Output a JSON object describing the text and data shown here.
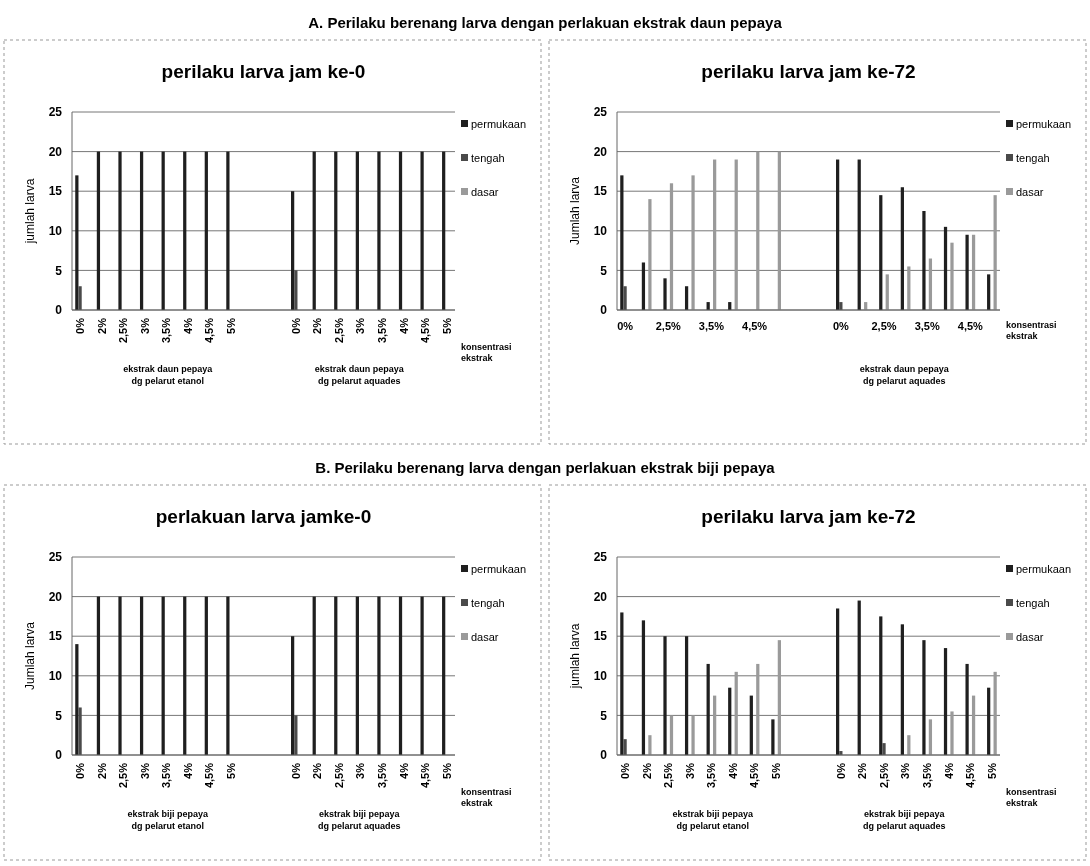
{
  "chart_data": [
    {
      "type": "bar",
      "subtitle": "A.  Perilaku berenang larva dengan perlakuan ekstrak daun pepaya",
      "title": "perilaku larva jam ke-0",
      "ylabel": "jumlah larva",
      "xlabel": "konsentrasi ekstrak",
      "categories": [
        "0%",
        "2%",
        "2,5%",
        "3%",
        "3,5%",
        "4%",
        "4,5%",
        "5%",
        null,
        null,
        "0%",
        "2%",
        "2,5%",
        "3%",
        "3,5%",
        "4%",
        "4,5%",
        "5%"
      ],
      "series": [
        {
          "name": "permukaan",
          "color": "#1f1f1f",
          "values": [
            17,
            20,
            20,
            20,
            20,
            20,
            20,
            20,
            null,
            null,
            15,
            20,
            20,
            20,
            20,
            20,
            20,
            20
          ]
        },
        {
          "name": "tengah",
          "color": "#4a4a4a",
          "values": [
            3,
            0,
            0,
            0,
            0,
            0,
            0,
            0,
            null,
            null,
            5,
            0,
            0,
            0,
            0,
            0,
            0,
            0
          ]
        },
        {
          "name": "dasar",
          "color": "#9a9a9a",
          "values": [
            0,
            0,
            0,
            0,
            0,
            0,
            0,
            0,
            null,
            null,
            0,
            0,
            0,
            0,
            0,
            0,
            0,
            0
          ]
        }
      ],
      "ylim": [
        0,
        25
      ],
      "yticks": [
        0,
        5,
        10,
        15,
        20,
        25
      ],
      "grid": "y",
      "legend": "right",
      "annotations": [
        "ekstrak daun pepaya dg pelarut etanol",
        "ekstrak daun pepaya dg pelarut aquades"
      ]
    },
    {
      "type": "bar",
      "title": "perilaku larva jam ke-72",
      "ylabel": "Jumlah larva",
      "xlabel": "konsentrasi ekstrak",
      "categories": [
        "0%",
        null,
        "2,5%",
        null,
        "3,5%",
        null,
        "4,5%",
        null,
        null,
        null,
        "0%",
        null,
        "2,5%",
        null,
        "3,5%",
        null,
        "4,5%",
        null
      ],
      "series": [
        {
          "name": "permukaan",
          "color": "#1f1f1f",
          "values": [
            17,
            6,
            4,
            3,
            1,
            1,
            0,
            0,
            null,
            null,
            19,
            19,
            14.5,
            15.5,
            12.5,
            10.5,
            9.5,
            4.5
          ]
        },
        {
          "name": "tengah",
          "color": "#4a4a4a",
          "values": [
            3,
            0,
            0,
            0,
            0,
            0,
            0,
            0,
            null,
            null,
            1,
            0,
            0,
            0,
            0,
            0,
            0,
            0
          ]
        },
        {
          "name": "dasar",
          "color": "#9a9a9a",
          "values": [
            0,
            14,
            16,
            17,
            19,
            19,
            20,
            20,
            null,
            null,
            0,
            1,
            4.5,
            5.5,
            6.5,
            8.5,
            9.5,
            14.5
          ]
        }
      ],
      "ylim": [
        0,
        25
      ],
      "yticks": [
        0,
        5,
        10,
        15,
        20,
        25
      ],
      "grid": "y",
      "legend": "right",
      "annotations": [
        "ekstrak daun pepaya dg pelarut aquades"
      ]
    },
    {
      "type": "bar",
      "subtitle": "B.  Perilaku berenang larva dengan perlakuan ekstrak biji pepaya",
      "title": "perlakuan larva jamke-0",
      "ylabel": "Jumlah larva",
      "xlabel": "konsentrasi ekstrak",
      "categories": [
        "0%",
        "2%",
        "2,5%",
        "3%",
        "3,5%",
        "4%",
        "4,5%",
        "5%",
        null,
        null,
        "0%",
        "2%",
        "2,5%",
        "3%",
        "3,5%",
        "4%",
        "4,5%",
        "5%"
      ],
      "series": [
        {
          "name": "permukaan",
          "color": "#1f1f1f",
          "values": [
            14,
            20,
            20,
            20,
            20,
            20,
            20,
            20,
            null,
            null,
            15,
            20,
            20,
            20,
            20,
            20,
            20,
            20
          ]
        },
        {
          "name": "tengah",
          "color": "#4a4a4a",
          "values": [
            6,
            0,
            0,
            0,
            0,
            0,
            0,
            0,
            null,
            null,
            5,
            0,
            0,
            0,
            0,
            0,
            0,
            0
          ]
        },
        {
          "name": "dasar",
          "color": "#9a9a9a",
          "values": [
            0,
            0,
            0,
            0,
            0,
            0,
            0,
            0,
            null,
            null,
            0,
            0,
            0,
            0,
            0,
            0,
            0,
            0
          ]
        }
      ],
      "ylim": [
        0,
        25
      ],
      "yticks": [
        0,
        5,
        10,
        15,
        20,
        25
      ],
      "grid": "y",
      "legend": "right",
      "annotations": [
        "ekstrak biji pepaya dg pelarut etanol",
        "ekstrak biji pepaya dg pelarut aquades"
      ]
    },
    {
      "type": "bar",
      "title": "perilaku larva jam ke-72",
      "ylabel": "jumlah larva",
      "xlabel": "konsentrasi ekstrak",
      "categories": [
        "0%",
        "2%",
        "2,5%",
        "3%",
        "3,5%",
        "4%",
        "4,5%",
        "5%",
        null,
        null,
        "0%",
        "2%",
        "2,5%",
        "3%",
        "3,5%",
        "4%",
        "4,5%",
        "5%"
      ],
      "series": [
        {
          "name": "permukaan",
          "color": "#1f1f1f",
          "values": [
            18,
            17,
            15,
            15,
            11.5,
            8.5,
            7.5,
            4.5,
            null,
            null,
            18.5,
            19.5,
            17.5,
            16.5,
            14.5,
            13.5,
            11.5,
            8.5
          ]
        },
        {
          "name": "tengah",
          "color": "#4a4a4a",
          "values": [
            2,
            0,
            0,
            0,
            0,
            0,
            0,
            0,
            null,
            null,
            0.5,
            0,
            1.5,
            0,
            0,
            0,
            0,
            0
          ]
        },
        {
          "name": "dasar",
          "color": "#9a9a9a",
          "values": [
            0,
            2.5,
            5,
            5,
            7.5,
            10.5,
            11.5,
            14.5,
            null,
            null,
            0,
            0,
            0,
            2.5,
            4.5,
            5.5,
            7.5,
            10.5
          ]
        }
      ],
      "ylim": [
        0,
        25
      ],
      "yticks": [
        0,
        5,
        10,
        15,
        20,
        25
      ],
      "grid": "y",
      "legend": "right",
      "annotations": [
        "ekstrak biji pepaya dg pelarut etanol",
        "ekstrak biji pepaya dg pelarut aquades"
      ]
    }
  ]
}
